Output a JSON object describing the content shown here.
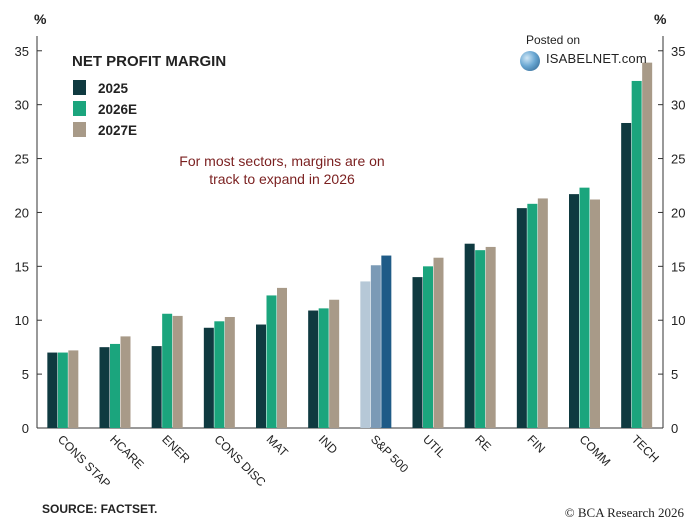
{
  "chart_data": {
    "type": "bar",
    "title": "NET PROFIT MARGIN",
    "ylabel_left": "%",
    "ylabel_right": "%",
    "ylim": [
      0,
      36
    ],
    "yticks": [
      0,
      5,
      10,
      15,
      20,
      25,
      30,
      35
    ],
    "annotation": "For most sectors, margins are on track to expand in 2026",
    "annotation_color": "#7a1f1f",
    "categories": [
      "CONS STAP",
      "HCARE",
      "ENER",
      "CONS DISC",
      "MAT",
      "IND",
      "S&P 500",
      "UTIL",
      "RE",
      "FIN",
      "COMM",
      "TECH"
    ],
    "series": [
      {
        "name": "2025",
        "color": "#0f3a40",
        "values": [
          7.0,
          7.5,
          7.6,
          9.3,
          9.6,
          10.9,
          13.6,
          14.0,
          17.1,
          20.4,
          21.7,
          28.3
        ]
      },
      {
        "name": "2026E",
        "color": "#1ba57d",
        "values": [
          7.0,
          7.8,
          10.6,
          9.9,
          12.3,
          11.1,
          15.1,
          15.0,
          16.5,
          20.8,
          22.3,
          32.2
        ]
      },
      {
        "name": "2027E",
        "color": "#a89a88",
        "values": [
          7.2,
          8.5,
          10.4,
          10.3,
          13.0,
          11.9,
          16.0,
          15.8,
          16.8,
          21.3,
          21.2,
          33.9
        ]
      }
    ],
    "highlight": {
      "category": "S&P 500",
      "colors": [
        "#b6c8d7",
        "#7b9ab6",
        "#1f5b87"
      ]
    },
    "legend_position": "top-left",
    "grid": false
  },
  "branding": {
    "posted_on": "Posted on",
    "site": "ISABELNET.com"
  },
  "footer": {
    "source": "SOURCE: FACTSET.",
    "copyright": "© BCA Research 2026"
  }
}
